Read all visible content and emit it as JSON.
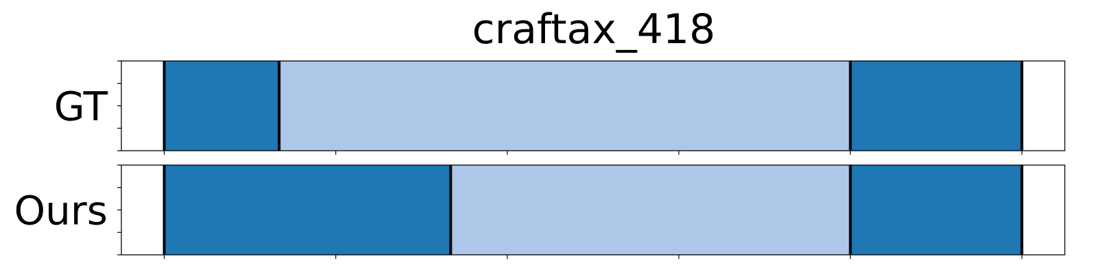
{
  "chart_data": {
    "type": "bar",
    "title": "craftax_418",
    "xlim": [
      0,
      550
    ],
    "xticks": [
      25,
      125,
      225,
      325,
      425,
      525
    ],
    "yticks_per_row": 5,
    "rows": [
      {
        "name": "GT",
        "segments": [
          {
            "start": 25,
            "end": 92,
            "color": "#1f77b4"
          },
          {
            "start": 92,
            "end": 425,
            "color": "#aec7e8"
          },
          {
            "start": 425,
            "end": 525,
            "color": "#1f77b4"
          }
        ],
        "boundaries": [
          25,
          92,
          425,
          525
        ]
      },
      {
        "name": "Ours",
        "segments": [
          {
            "start": 25,
            "end": 192,
            "color": "#1f77b4"
          },
          {
            "start": 192,
            "end": 425,
            "color": "#aec7e8"
          },
          {
            "start": 425,
            "end": 525,
            "color": "#1f77b4"
          }
        ],
        "boundaries": [
          25,
          192,
          425,
          525
        ]
      }
    ]
  }
}
